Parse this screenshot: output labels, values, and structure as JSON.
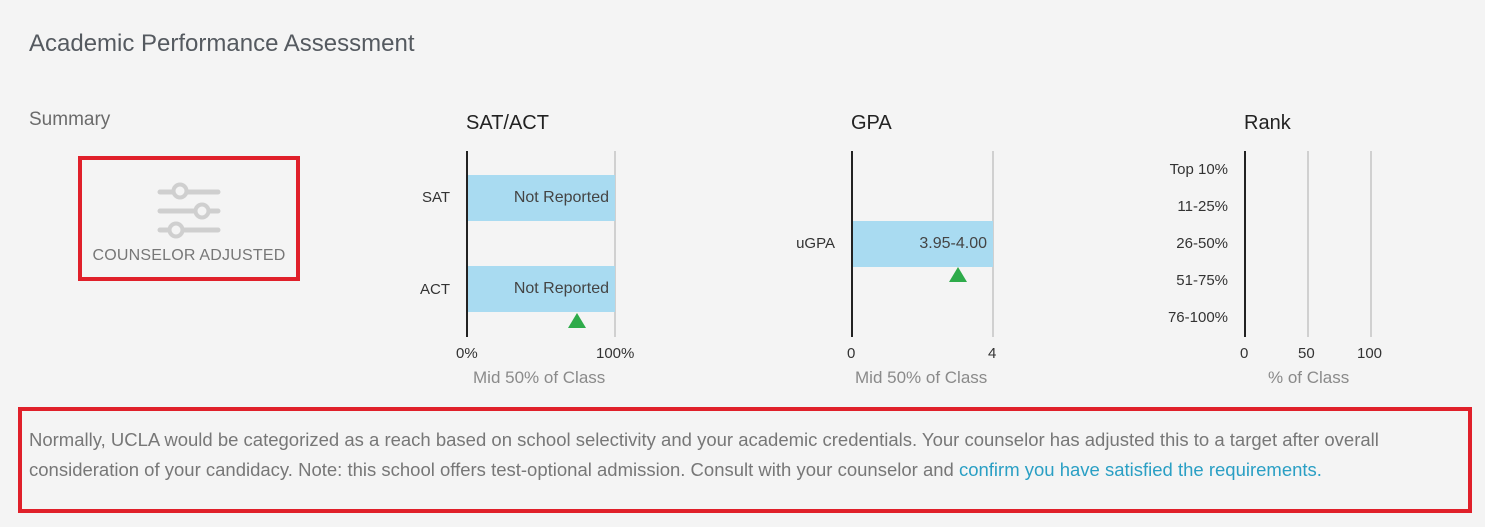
{
  "page": {
    "title": "Academic Performance Assessment"
  },
  "summary": {
    "label": "Summary",
    "status": "COUNSELOR ADJUSTED",
    "icon": "sliders-icon"
  },
  "charts": {
    "sat_act": {
      "title": "SAT/ACT",
      "rows": [
        {
          "label": "SAT",
          "value": "Not Reported"
        },
        {
          "label": "ACT",
          "value": "Not Reported"
        }
      ],
      "ticks": [
        "0%",
        "100%"
      ],
      "caption": "Mid 50% of Class",
      "marker_percent": 75
    },
    "gpa": {
      "title": "GPA",
      "rows": [
        {
          "label": "uGPA",
          "value": "3.95-4.00"
        }
      ],
      "ticks": [
        "0",
        "4"
      ],
      "caption": "Mid 50% of Class",
      "marker_value": 3.0
    },
    "rank": {
      "title": "Rank",
      "rows": [
        "Top 10%",
        "11-25%",
        "26-50%",
        "51-75%",
        "76-100%"
      ],
      "ticks": [
        "0",
        "50",
        "100"
      ],
      "caption": "% of Class"
    }
  },
  "note": {
    "text": "Normally, UCLA would be categorized as a reach based on school selectivity and your academic credentials. Your counselor has adjusted this to a target after overall consideration of your candidacy. Note: this school offers test-optional admission. Consult with your counselor and ",
    "link_text": "confirm you have satisfied the requirements."
  },
  "colors": {
    "bar": "#a9dbf1",
    "marker": "#2eab4a",
    "highlight_border": "#e0202a",
    "link": "#2a9fc4"
  }
}
